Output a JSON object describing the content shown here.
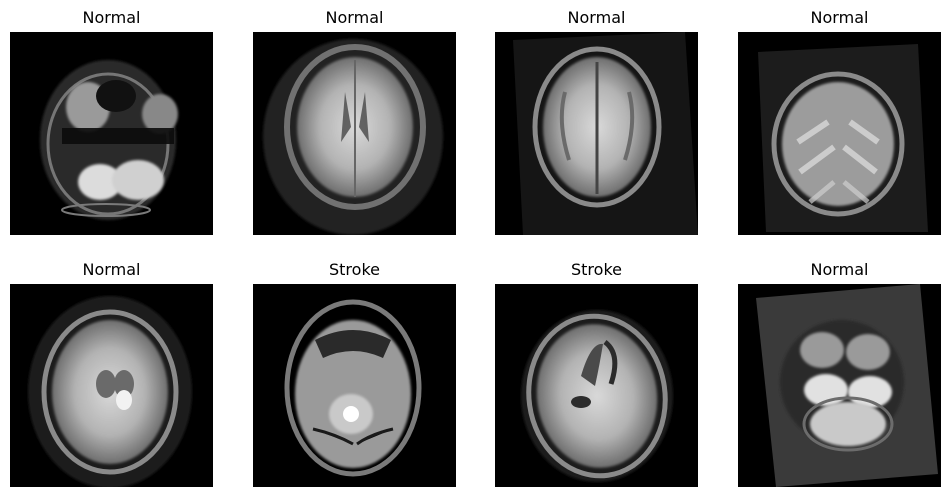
{
  "panels": [
    {
      "label": "Normal",
      "slice": "posterior-fossa-irregular"
    },
    {
      "label": "Normal",
      "slice": "upper-cerebrum"
    },
    {
      "label": "Normal",
      "slice": "upper-cerebrum-rotated"
    },
    {
      "label": "Normal",
      "slice": "vertex-sulci"
    },
    {
      "label": "Normal",
      "slice": "mid-brain-ventricles"
    },
    {
      "label": "Stroke",
      "slice": "midbrain-lesion"
    },
    {
      "label": "Stroke",
      "slice": "ventricle-level-lesion"
    },
    {
      "label": "Normal",
      "slice": "cerebellum-rotated"
    }
  ]
}
